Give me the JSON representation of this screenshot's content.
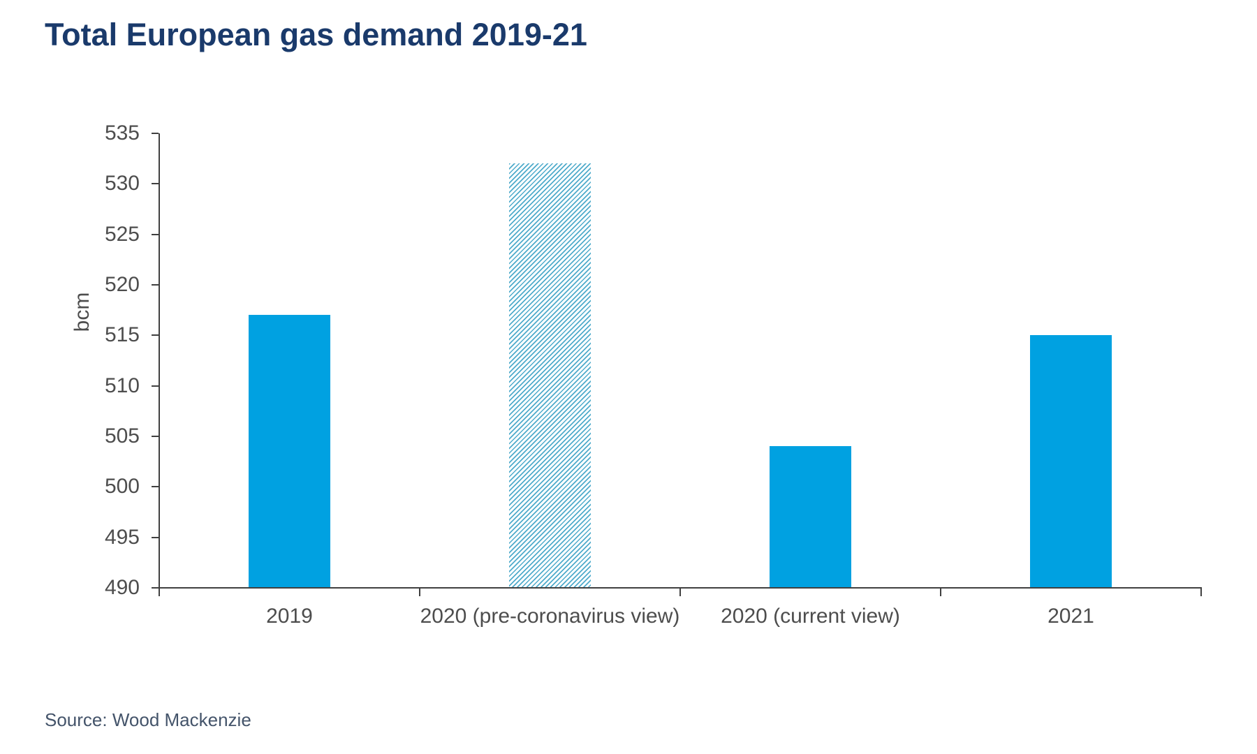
{
  "header": {
    "title": "Total European gas demand 2019-21"
  },
  "footer": {
    "source": "Source: Wood Mackenzie"
  },
  "colors": {
    "title_navy": "#1a3a6b",
    "bar_blue": "#00a1e1",
    "hatch_blue": "#4fabcb",
    "axis_gray": "#404040",
    "tick_text_gray": "#4d4d4d",
    "source_slate": "#44546a"
  },
  "chart_data": {
    "type": "bar",
    "title": "Total European gas demand 2019-21",
    "xlabel": "",
    "ylabel": "bcm",
    "categories": [
      "2019",
      "2020 (pre-coronavirus view)",
      "2020 (current view)",
      "2021"
    ],
    "values": [
      517,
      532,
      504,
      515
    ],
    "bar_styles": [
      "solid",
      "hatched",
      "solid",
      "solid"
    ],
    "ylim": [
      490,
      535
    ],
    "yticks": [
      490,
      495,
      500,
      505,
      510,
      515,
      520,
      525,
      530,
      535
    ],
    "grid": false,
    "legend": "none"
  }
}
